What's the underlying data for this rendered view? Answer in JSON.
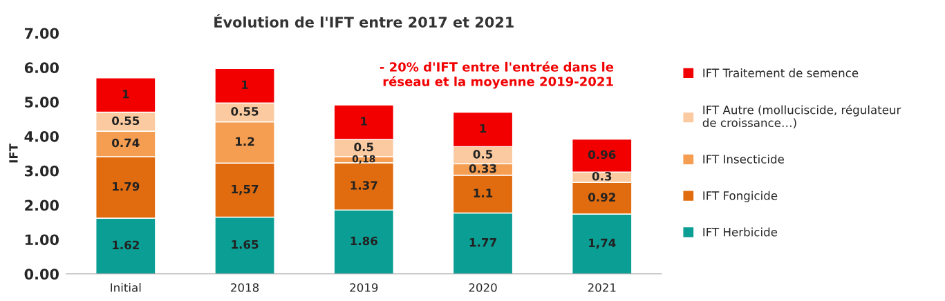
{
  "chart_data": {
    "type": "bar",
    "stacked": true,
    "title": "Évolution de l'IFT entre 2017 et 2021",
    "ylabel": "IFT",
    "categories": [
      "Initial",
      "2018",
      "2019",
      "2020",
      "2021"
    ],
    "series": [
      {
        "name": "IFT Herbicide",
        "color": "#0b9e94",
        "values": [
          1.62,
          1.65,
          1.86,
          1.77,
          1.74
        ],
        "value_labels": [
          "1.62",
          "1.65",
          "1.86",
          "1.77",
          "1,74"
        ]
      },
      {
        "name": "IFT Fongicide",
        "color": "#e06c0f",
        "values": [
          1.79,
          1.57,
          1.37,
          1.1,
          0.92
        ],
        "value_labels": [
          "1.79",
          "1,57",
          "1.37",
          "1.1",
          "0.92"
        ]
      },
      {
        "name": "IFT Insecticide",
        "color": "#f59d50",
        "values": [
          0.74,
          1.2,
          0.18,
          0.33,
          null
        ],
        "value_labels": [
          "0.74",
          "1.2",
          "0,18",
          "0.33",
          null
        ]
      },
      {
        "name": "IFT Autre (molluciscide, régulateur de croissance…)",
        "color": "#fbcaa0",
        "values": [
          0.55,
          0.55,
          0.5,
          0.5,
          0.3
        ],
        "value_labels": [
          "0.55",
          "0.55",
          "0.5",
          "0.5",
          "0.3"
        ]
      },
      {
        "name": "IFT Traitement de semence",
        "color": "#f20000",
        "values": [
          1,
          1,
          1,
          1,
          0.96
        ],
        "value_labels": [
          "1",
          "1",
          "1",
          "1",
          "0.96"
        ]
      }
    ],
    "ylim": [
      0,
      7
    ],
    "yticks": [
      {
        "value": 0,
        "label": "0.00"
      },
      {
        "value": 1,
        "label": "1.00"
      },
      {
        "value": 2,
        "label": "2.00"
      },
      {
        "value": 3,
        "label": "3.00"
      },
      {
        "value": 4,
        "label": "4.00"
      },
      {
        "value": 5,
        "label": "5.00"
      },
      {
        "value": 6,
        "label": "6.00"
      },
      {
        "value": 7,
        "label": "7.00"
      }
    ],
    "grid": false,
    "legend": "right",
    "annotations": [
      "- 20% d'IFT entre l'entrée dans le\nréseau et la moyenne 2019-2021"
    ]
  }
}
